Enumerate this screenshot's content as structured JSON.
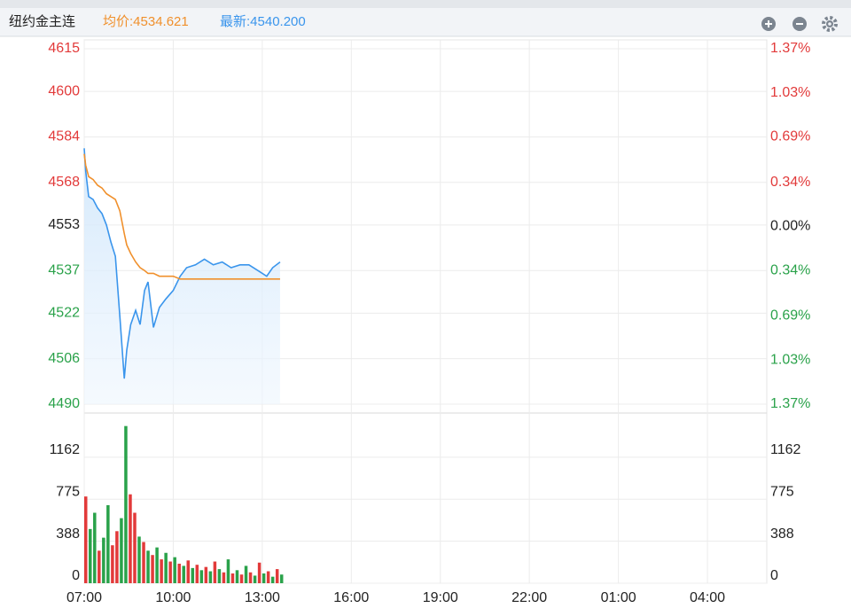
{
  "header": {
    "title": "纽约金主连",
    "average": "均价:4534.621",
    "latest": "最新:4540.200"
  },
  "chart_data": [
    {
      "type": "line",
      "grid": true,
      "x": [
        "07:00",
        "07:03",
        "07:09",
        "07:18",
        "07:27",
        "07:36",
        "07:45",
        "07:54",
        "08:03",
        "08:12",
        "08:21",
        "08:26",
        "08:34",
        "08:44",
        "08:53",
        "09:02",
        "09:09",
        "09:20",
        "09:32",
        "09:45",
        "10:00",
        "10:14",
        "10:27",
        "10:45",
        "11:03",
        "11:21",
        "11:39",
        "11:57",
        "12:15",
        "12:33",
        "12:51",
        "13:09",
        "13:21",
        "13:36"
      ],
      "xlim": [
        "07:00",
        "06:00"
      ],
      "ylim": [
        4490,
        4615
      ],
      "yticks": [
        4615,
        4600,
        4584,
        4568,
        4553,
        4537,
        4522,
        4506,
        4490
      ],
      "y2lim": [
        -1.37,
        1.37
      ],
      "y2ticks": [
        {
          "value": 1.37,
          "label": "1.37%"
        },
        {
          "value": 1.03,
          "label": "1.03%"
        },
        {
          "value": 0.69,
          "label": "0.69%"
        },
        {
          "value": 0.34,
          "label": "0.34%"
        },
        {
          "value": 0,
          "label": "0.00%"
        },
        {
          "value": -0.34,
          "label": "0.34%"
        },
        {
          "value": -0.69,
          "label": "0.69%"
        },
        {
          "value": -1.03,
          "label": "1.03%"
        },
        {
          "value": -1.37,
          "label": "1.37%"
        }
      ],
      "series": [
        {
          "color": "#3a95ec",
          "area": true,
          "values": [
            4580,
            4572,
            4563,
            4562,
            4559,
            4557,
            4553,
            4547,
            4542,
            4521,
            4499,
            4509,
            4518,
            4523,
            4518,
            4530,
            4533,
            4517,
            4524,
            4527,
            4530,
            4535,
            4538,
            4539,
            4541,
            4539,
            4540,
            4538,
            4539,
            4539,
            4537,
            4535,
            4538,
            4540
          ]
        },
        {
          "color": "#f0902c",
          "values": [
            4578,
            4574,
            4570,
            4569,
            4567,
            4566,
            4564,
            4563,
            4562,
            4558,
            4550,
            4546,
            4543,
            4540,
            4538,
            4537,
            4536,
            4536,
            4535,
            4535,
            4535,
            4534,
            4534,
            4534,
            4534,
            4534,
            4534,
            4534,
            4534,
            4534,
            4534,
            4534,
            4534,
            4534
          ]
        }
      ]
    },
    {
      "type": "bar",
      "grid": true,
      "x": [
        "07:00",
        "07:09",
        "07:18",
        "07:27",
        "07:36",
        "07:45",
        "07:54",
        "08:03",
        "08:12",
        "08:21",
        "08:30",
        "08:39",
        "08:48",
        "08:57",
        "09:06",
        "09:15",
        "09:24",
        "09:33",
        "09:42",
        "09:51",
        "10:00",
        "10:09",
        "10:18",
        "10:27",
        "10:36",
        "10:45",
        "10:54",
        "11:03",
        "11:12",
        "11:21",
        "11:30",
        "11:39",
        "11:48",
        "11:57",
        "12:06",
        "12:15",
        "12:24",
        "12:33",
        "12:42",
        "12:51",
        "13:00",
        "13:09",
        "13:18",
        "13:27",
        "13:36"
      ],
      "xlim": [
        "07:00",
        "06:00"
      ],
      "xticks": [
        "07:00",
        "10:00",
        "13:00",
        "16:00",
        "19:00",
        "22:00",
        "01:00",
        "04:00"
      ],
      "ylim": [
        0,
        1570
      ],
      "yticks": [
        0,
        388,
        775,
        1162
      ],
      "values": [
        800,
        500,
        650,
        300,
        420,
        720,
        350,
        480,
        600,
        1450,
        820,
        650,
        430,
        380,
        300,
        260,
        330,
        220,
        280,
        200,
        240,
        180,
        160,
        210,
        140,
        170,
        120,
        150,
        110,
        200,
        130,
        100,
        220,
        90,
        120,
        80,
        160,
        100,
        70,
        190,
        90,
        110,
        60,
        130,
        80
      ],
      "colors": [
        "#e23a3a",
        "#2aa24a",
        "#2aa24a",
        "#e23a3a",
        "#2aa24a",
        "#2aa24a",
        "#e23a3a",
        "#e23a3a",
        "#2aa24a",
        "#2aa24a",
        "#e23a3a",
        "#e23a3a",
        "#2aa24a",
        "#e23a3a",
        "#2aa24a",
        "#e23a3a",
        "#2aa24a",
        "#e23a3a",
        "#2aa24a",
        "#e23a3a",
        "#2aa24a",
        "#e23a3a",
        "#2aa24a",
        "#e23a3a",
        "#2aa24a",
        "#e23a3a",
        "#2aa24a",
        "#e23a3a",
        "#2aa24a",
        "#e23a3a",
        "#2aa24a",
        "#e23a3a",
        "#2aa24a",
        "#e23a3a",
        "#2aa24a",
        "#e23a3a",
        "#2aa24a",
        "#e23a3a",
        "#2aa24a",
        "#e23a3a",
        "#2aa24a",
        "#e23a3a",
        "#2aa24a",
        "#e23a3a",
        "#2aa24a"
      ]
    }
  ]
}
